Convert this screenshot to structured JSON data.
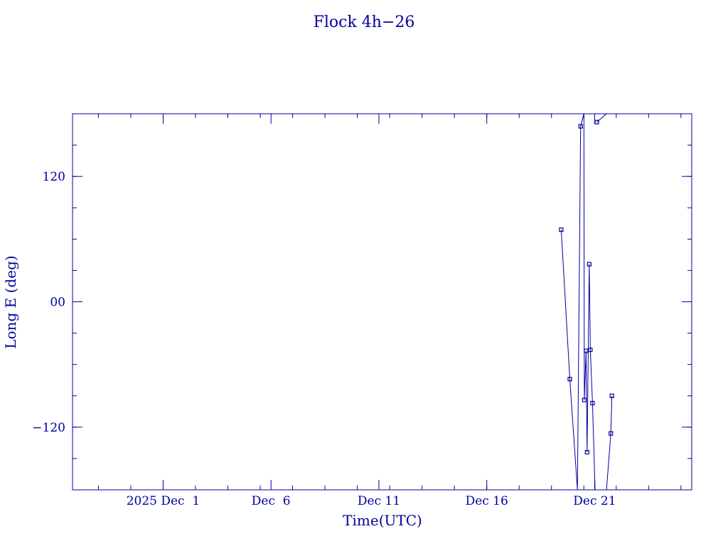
{
  "colors": {
    "ink": "#0000a0",
    "background": "#ffffff"
  },
  "chart_data": {
    "type": "line",
    "title": "Flock 4h−26",
    "xlabel": "Time(UTC)",
    "ylabel": "Long E (deg)",
    "x_unit": "day",
    "xlim": [
      -4.2,
      24.5
    ],
    "ylim": [
      -180,
      180
    ],
    "x_ticks": [
      {
        "x": 0,
        "label": "2025 Dec  1"
      },
      {
        "x": 5,
        "label": "Dec  6"
      },
      {
        "x": 10,
        "label": "Dec 11"
      },
      {
        "x": 15,
        "label": "Dec 16"
      },
      {
        "x": 20,
        "label": "Dec 21"
      }
    ],
    "x_minor_step": 1.5,
    "y_ticks": [
      {
        "y": 120,
        "label": "120"
      },
      {
        "y": 0,
        "label": "00"
      },
      {
        "y": -120,
        "label": "−120"
      }
    ],
    "y_minor_step": 30,
    "grid": false,
    "legend": "none",
    "series": [
      {
        "x": [
          18.45,
          18.85,
          19.2,
          19.35,
          19.5
        ],
        "y": [
          69,
          -74,
          -180,
          168,
          180
        ],
        "markers": [
          true,
          true,
          false,
          true,
          false
        ]
      },
      {
        "x": [
          19.5,
          19.52,
          19.6,
          19.65,
          19.75,
          19.8,
          19.9,
          20.02
        ],
        "y": [
          180,
          -94,
          -47,
          -144,
          36,
          -46,
          -97,
          -180
        ],
        "markers": [
          false,
          true,
          true,
          true,
          true,
          true,
          true,
          false
        ]
      },
      {
        "x": [
          19.65,
          19.73,
          19.8
        ],
        "y": [
          180,
          180,
          180
        ],
        "markers": [
          false,
          false,
          false
        ]
      },
      {
        "x": [
          20.1,
          20.55
        ],
        "y": [
          172,
          180
        ],
        "markers": [
          true,
          false
        ]
      },
      {
        "x": [
          20.55,
          20.75,
          20.8
        ],
        "y": [
          -180,
          -126,
          -90
        ],
        "markers": [
          false,
          true,
          true
        ]
      }
    ]
  }
}
